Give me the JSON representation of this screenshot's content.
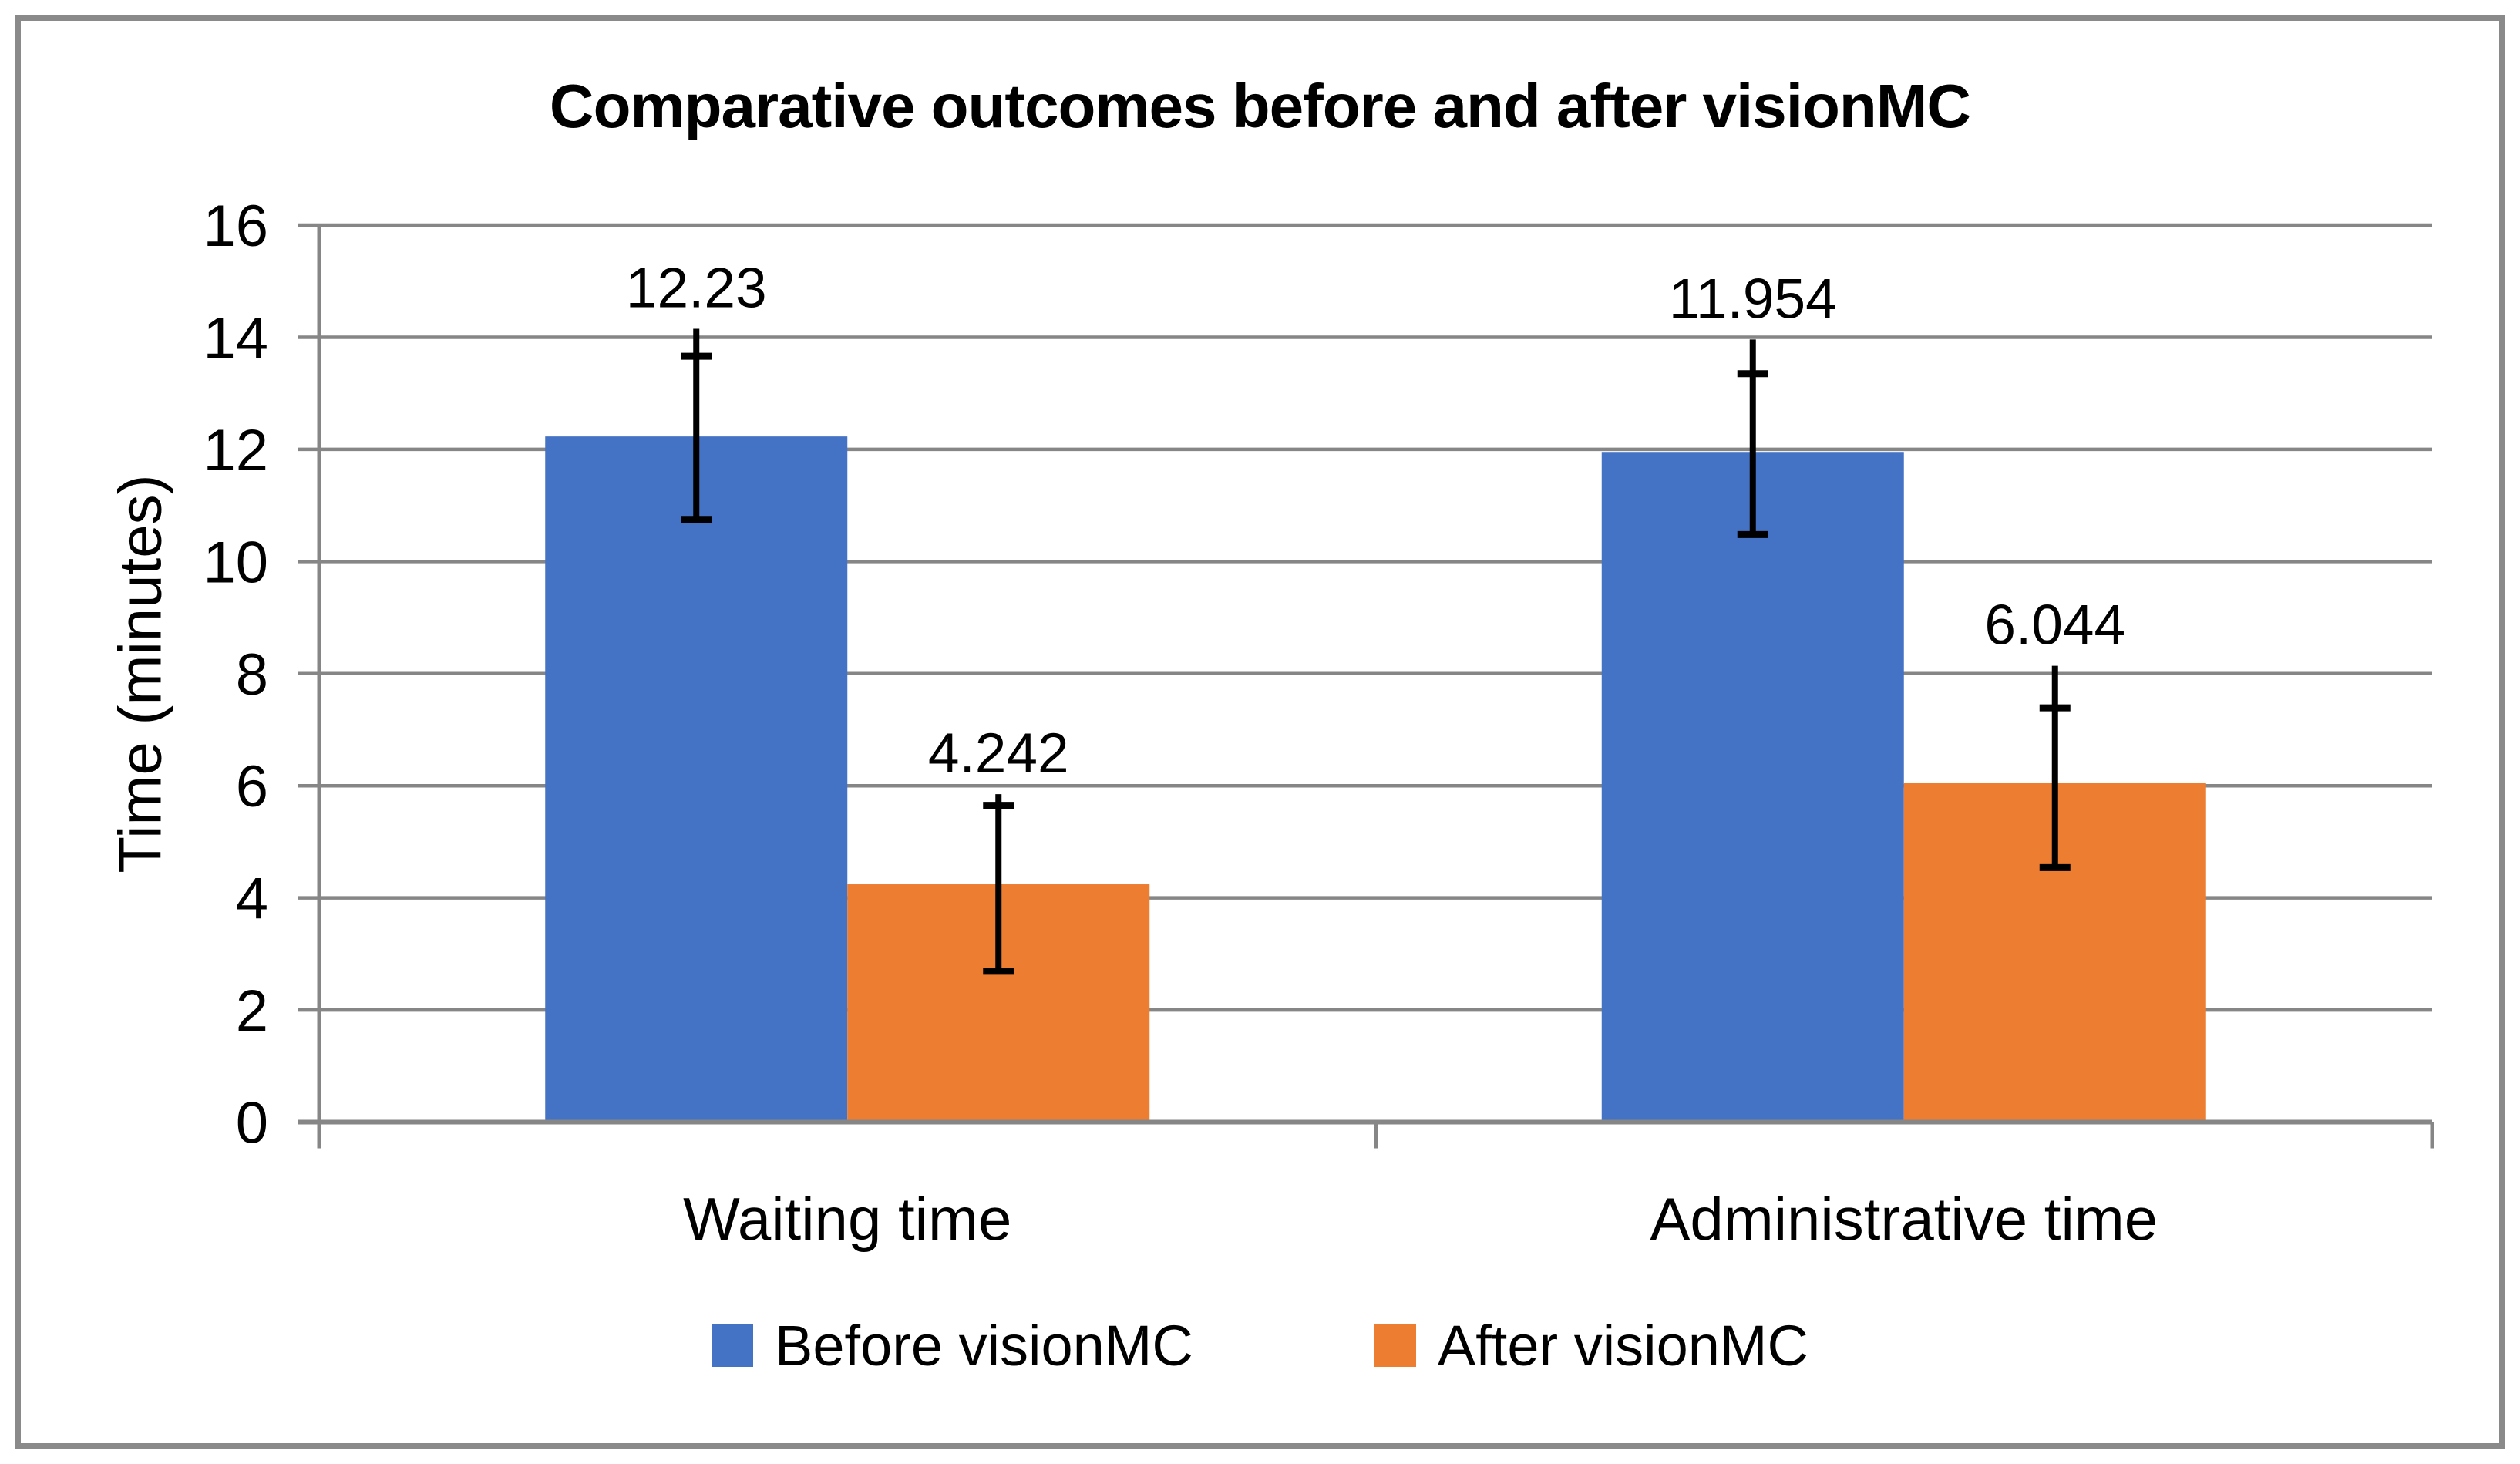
{
  "title": "Comparative outcomes before and after visionMC",
  "chart_data": {
    "type": "bar",
    "title": "Comparative outcomes before and after visionMC",
    "xlabel": "",
    "ylabel": "Time (minutes)",
    "ylim": [
      0,
      16
    ],
    "ytick_step": 2,
    "yticks": [
      0,
      2,
      4,
      6,
      8,
      10,
      12,
      14,
      16
    ],
    "ytick_labels": [
      "0",
      "2",
      "4",
      "6",
      "8",
      "10",
      "12",
      "14",
      "16"
    ],
    "grid": true,
    "legend_position": "bottom",
    "categories": [
      "Waiting time",
      "Administrative time"
    ],
    "series": [
      {
        "name": "Before visionMC",
        "color": "#4472C4",
        "values": [
          12.23,
          11.954
        ],
        "data_labels": [
          "12.23",
          "11.954"
        ],
        "error_bars": [
          {
            "cap_top": 13.66,
            "cap_bottom": 10.75,
            "line_top": 14.15
          },
          {
            "cap_top": 13.35,
            "cap_bottom": 10.48,
            "line_top": 13.96
          }
        ]
      },
      {
        "name": "After visionMC",
        "color": "#ED7D31",
        "values": [
          4.242,
          6.044
        ],
        "data_labels": [
          "4.242",
          "6.044"
        ],
        "error_bars": [
          {
            "cap_top": 5.65,
            "cap_bottom": 2.69,
            "line_top": 5.85
          },
          {
            "cap_top": 7.39,
            "cap_bottom": 4.54,
            "line_top": 8.14
          }
        ]
      }
    ],
    "colors": {
      "gridline": "#868686",
      "axis": "#868686",
      "error_bar": "#000000",
      "text": "#000000",
      "chart_border": "#8a8a8a"
    }
  }
}
